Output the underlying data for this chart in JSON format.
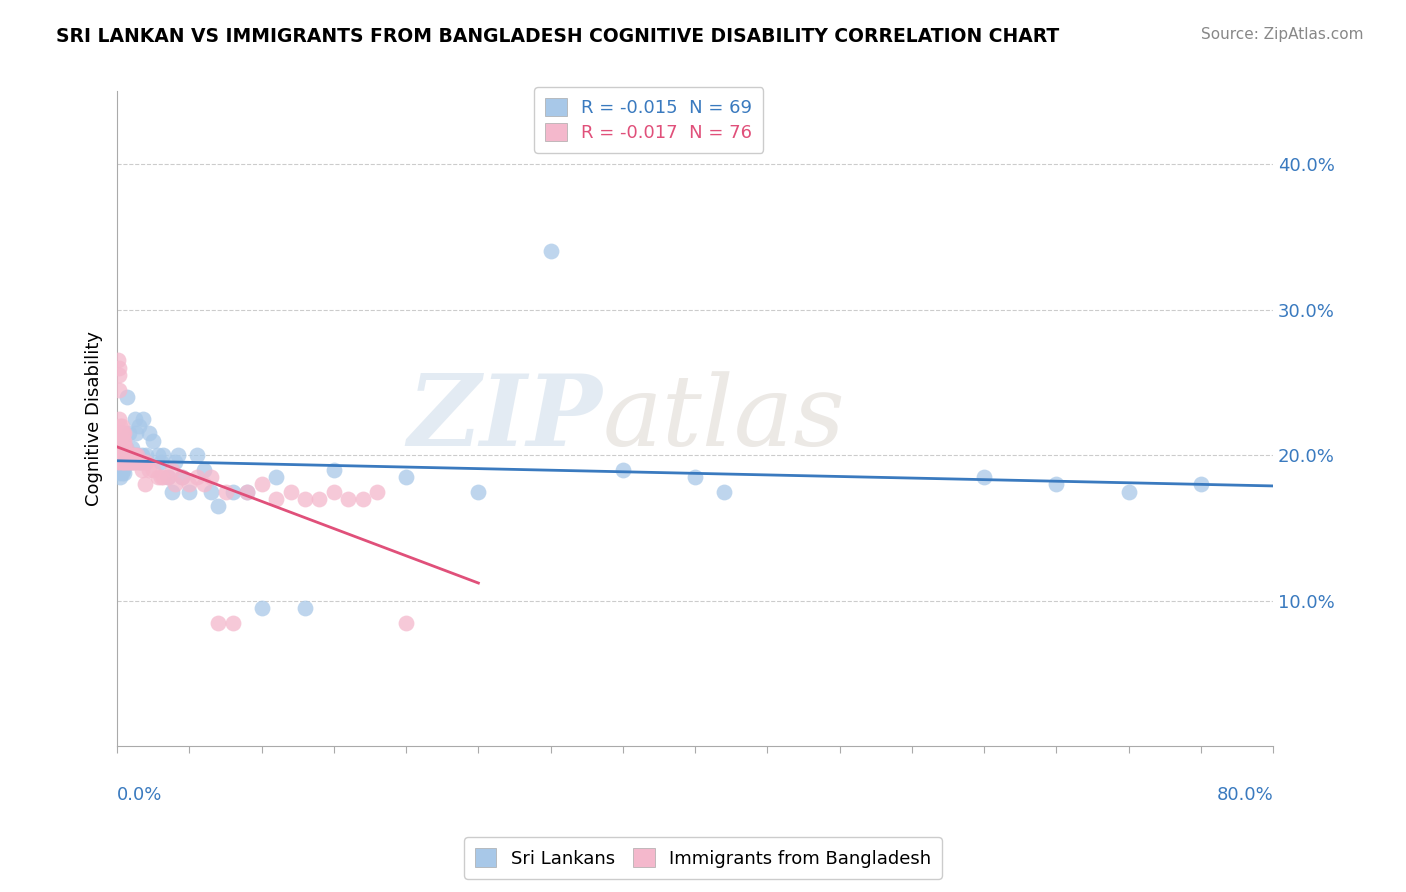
{
  "title": "SRI LANKAN VS IMMIGRANTS FROM BANGLADESH COGNITIVE DISABILITY CORRELATION CHART",
  "source": "Source: ZipAtlas.com",
  "ylabel": "Cognitive Disability",
  "legend_entry1": "R = -0.015  N = 69",
  "legend_entry2": "R = -0.017  N = 76",
  "legend_label1": "Sri Lankans",
  "legend_label2": "Immigrants from Bangladesh",
  "watermark_zip": "ZIP",
  "watermark_atlas": "atlas",
  "color_blue": "#a8c8e8",
  "color_pink": "#f4b8cc",
  "color_blue_line": "#3a7abf",
  "color_pink_line": "#e0507a",
  "xlim": [
    0.0,
    0.8
  ],
  "ylim": [
    0.0,
    0.45
  ],
  "yticks": [
    0.1,
    0.2,
    0.3,
    0.4
  ],
  "ytick_labels": [
    "10.0%",
    "20.0%",
    "30.0%",
    "40.0%"
  ],
  "sri_lankans_x": [
    0.0005,
    0.001,
    0.001,
    0.001,
    0.0015,
    0.0015,
    0.002,
    0.002,
    0.002,
    0.003,
    0.003,
    0.003,
    0.003,
    0.004,
    0.004,
    0.004,
    0.004,
    0.005,
    0.005,
    0.005,
    0.006,
    0.006,
    0.007,
    0.007,
    0.008,
    0.008,
    0.009,
    0.01,
    0.01,
    0.011,
    0.012,
    0.013,
    0.014,
    0.015,
    0.016,
    0.017,
    0.018,
    0.02,
    0.022,
    0.025,
    0.028,
    0.03,
    0.032,
    0.035,
    0.038,
    0.04,
    0.042,
    0.045,
    0.05,
    0.055,
    0.06,
    0.065,
    0.07,
    0.08,
    0.09,
    0.1,
    0.11,
    0.13,
    0.15,
    0.2,
    0.25,
    0.3,
    0.35,
    0.4,
    0.42,
    0.6,
    0.65,
    0.7,
    0.75
  ],
  "sri_lankans_y": [
    0.19,
    0.2,
    0.195,
    0.205,
    0.188,
    0.21,
    0.195,
    0.2,
    0.185,
    0.198,
    0.202,
    0.192,
    0.188,
    0.195,
    0.2,
    0.205,
    0.19,
    0.2,
    0.195,
    0.188,
    0.205,
    0.195,
    0.24,
    0.2,
    0.195,
    0.215,
    0.2,
    0.195,
    0.205,
    0.2,
    0.225,
    0.215,
    0.2,
    0.22,
    0.195,
    0.2,
    0.225,
    0.2,
    0.215,
    0.21,
    0.2,
    0.195,
    0.2,
    0.185,
    0.175,
    0.195,
    0.2,
    0.185,
    0.175,
    0.2,
    0.19,
    0.175,
    0.165,
    0.175,
    0.175,
    0.095,
    0.185,
    0.095,
    0.19,
    0.185,
    0.175,
    0.34,
    0.19,
    0.185,
    0.175,
    0.185,
    0.18,
    0.175,
    0.18
  ],
  "bangladesh_x": [
    0.0003,
    0.0005,
    0.0008,
    0.001,
    0.001,
    0.001,
    0.0015,
    0.0015,
    0.002,
    0.002,
    0.002,
    0.002,
    0.003,
    0.003,
    0.003,
    0.003,
    0.003,
    0.004,
    0.004,
    0.004,
    0.004,
    0.005,
    0.005,
    0.005,
    0.005,
    0.006,
    0.006,
    0.006,
    0.007,
    0.007,
    0.007,
    0.008,
    0.008,
    0.009,
    0.009,
    0.01,
    0.01,
    0.011,
    0.011,
    0.012,
    0.012,
    0.013,
    0.014,
    0.015,
    0.016,
    0.017,
    0.018,
    0.019,
    0.02,
    0.022,
    0.025,
    0.028,
    0.03,
    0.032,
    0.035,
    0.038,
    0.04,
    0.045,
    0.05,
    0.055,
    0.06,
    0.065,
    0.07,
    0.075,
    0.08,
    0.09,
    0.1,
    0.11,
    0.12,
    0.13,
    0.14,
    0.15,
    0.16,
    0.17,
    0.18,
    0.2
  ],
  "bangladesh_y": [
    0.195,
    0.265,
    0.2,
    0.26,
    0.195,
    0.245,
    0.255,
    0.225,
    0.21,
    0.215,
    0.22,
    0.2,
    0.22,
    0.215,
    0.195,
    0.205,
    0.2,
    0.215,
    0.21,
    0.2,
    0.195,
    0.21,
    0.215,
    0.205,
    0.195,
    0.2,
    0.195,
    0.205,
    0.2,
    0.195,
    0.2,
    0.195,
    0.2,
    0.195,
    0.2,
    0.2,
    0.195,
    0.195,
    0.2,
    0.195,
    0.2,
    0.195,
    0.2,
    0.195,
    0.195,
    0.19,
    0.195,
    0.18,
    0.195,
    0.19,
    0.19,
    0.185,
    0.185,
    0.185,
    0.185,
    0.19,
    0.18,
    0.185,
    0.18,
    0.185,
    0.18,
    0.185,
    0.085,
    0.175,
    0.085,
    0.175,
    0.18,
    0.17,
    0.175,
    0.17,
    0.17,
    0.175,
    0.17,
    0.17,
    0.175,
    0.085
  ]
}
